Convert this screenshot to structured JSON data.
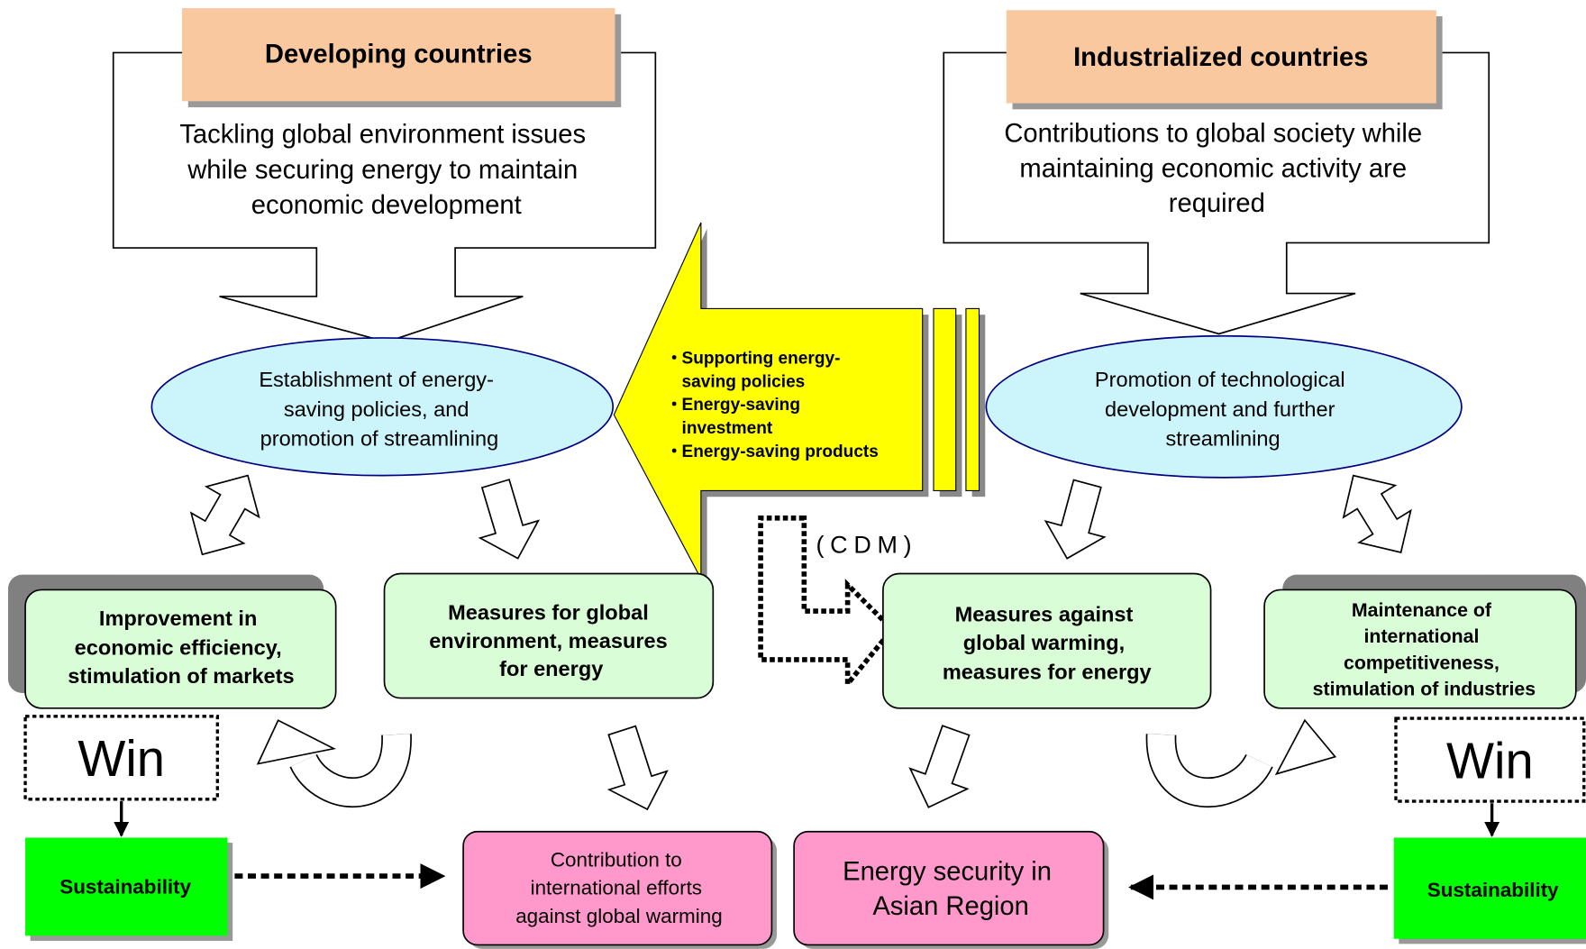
{
  "developing": {
    "title": "Developing countries",
    "description": [
      "Tackling global environment issues",
      "while securing energy to maintain",
      "economic development"
    ],
    "policy": [
      "Establishment of energy-",
      "saving policies, and",
      "promotion of streamlining"
    ],
    "benefit": [
      "Improvement in",
      "economic efficiency,",
      "stimulation of markets"
    ],
    "measures": [
      "Measures for global",
      "environment, measures",
      "for energy"
    ],
    "win": "Win",
    "sustainability": "Sustainability"
  },
  "industrialized": {
    "title": "Industrialized countries",
    "description": [
      "Contributions to global society while",
      "maintaining economic activity are",
      "required"
    ],
    "policy": [
      "Promotion of technological",
      "development and further",
      "streamlining"
    ],
    "measures": [
      "Measures against",
      "global warming,",
      "measures for energy"
    ],
    "benefit": [
      "Maintenance of",
      "international",
      "competitiveness,",
      "stimulation of industries"
    ],
    "win": "Win",
    "sustainability": "Sustainability"
  },
  "support": [
    [
      "Supporting energy-",
      "saving policies"
    ],
    [
      "Energy-saving",
      "investment"
    ],
    [
      "Energy-saving products"
    ]
  ],
  "cdm": "(CDM)",
  "outcomes": [
    [
      "Contribution to",
      "international efforts",
      "against global warming"
    ],
    [
      "Energy security in",
      "Asian Region"
    ]
  ]
}
